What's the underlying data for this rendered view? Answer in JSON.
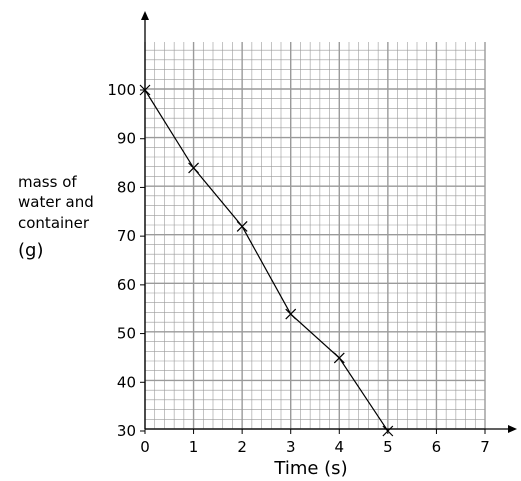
{
  "chart_data": {
    "type": "line",
    "xlabel": "Time (s)",
    "ylabel_lines": [
      "mass of",
      "water and",
      "container"
    ],
    "ylabel_unit": "(g)",
    "xlim": [
      0,
      7
    ],
    "ylim": [
      30,
      100
    ],
    "xticks": [
      0,
      1,
      2,
      3,
      4,
      5,
      6,
      7
    ],
    "yticks": [
      30,
      40,
      50,
      60,
      70,
      80,
      90,
      100
    ],
    "grid": true,
    "markers": "x",
    "series": [
      {
        "x": [
          0,
          1,
          2,
          3,
          4,
          5
        ],
        "y": [
          100,
          84,
          72,
          54,
          45,
          30
        ]
      }
    ],
    "colors": {
      "grid": "#9a9a9a",
      "line": "#000000"
    }
  }
}
